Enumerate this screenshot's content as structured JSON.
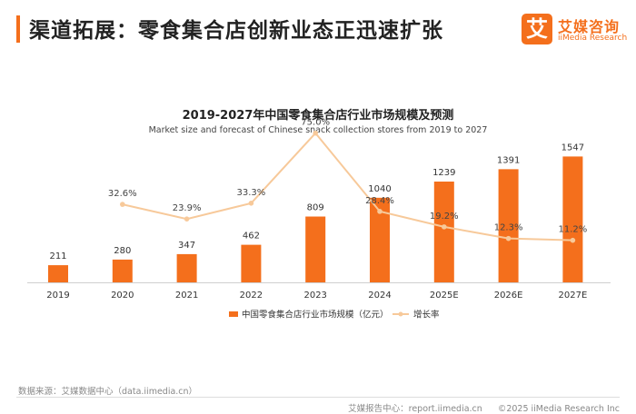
{
  "page": {
    "title": "渠道拓展：零食集合店创新业态正迅速扩张",
    "logo_mark": "艾",
    "logo_cn": "艾媒咨询",
    "logo_en": "iiMedia Research"
  },
  "colors": {
    "accent": "#f46f1c",
    "bar": "#f46f1c",
    "line": "#f7c99a"
  },
  "chart_data": {
    "type": "bar",
    "title": "2019-2027年中国零食集合店行业市场规模及预测",
    "subtitle": "Market size and forecast of Chinese snack collection stores from 2019 to 2027",
    "categories": [
      "2019",
      "2020",
      "2021",
      "2022",
      "2023",
      "2024",
      "2025E",
      "2026E",
      "2027E"
    ],
    "series": [
      {
        "name": "中国零食集合店行业市场规模（亿元）",
        "type": "bar",
        "values": [
          211,
          280,
          347,
          462,
          809,
          1040,
          1239,
          1391,
          1547
        ]
      },
      {
        "name": "增长率",
        "type": "line",
        "values": [
          null,
          32.6,
          23.9,
          33.3,
          75.0,
          28.4,
          19.2,
          12.3,
          11.2
        ],
        "labels": [
          "",
          "32.6%",
          "23.9%",
          "33.3%",
          "75.0%",
          "28.4%",
          "19.2%",
          "12.3%",
          "11.2%"
        ]
      }
    ],
    "legend_position": "bottom",
    "grid": false
  },
  "footer": {
    "source": "数据来源：艾媒数据中心（data.iimedia.cn）",
    "report_center": "艾媒报告中心：report.iimedia.cn",
    "copyright": "©2025  iiMedia Research Inc"
  }
}
